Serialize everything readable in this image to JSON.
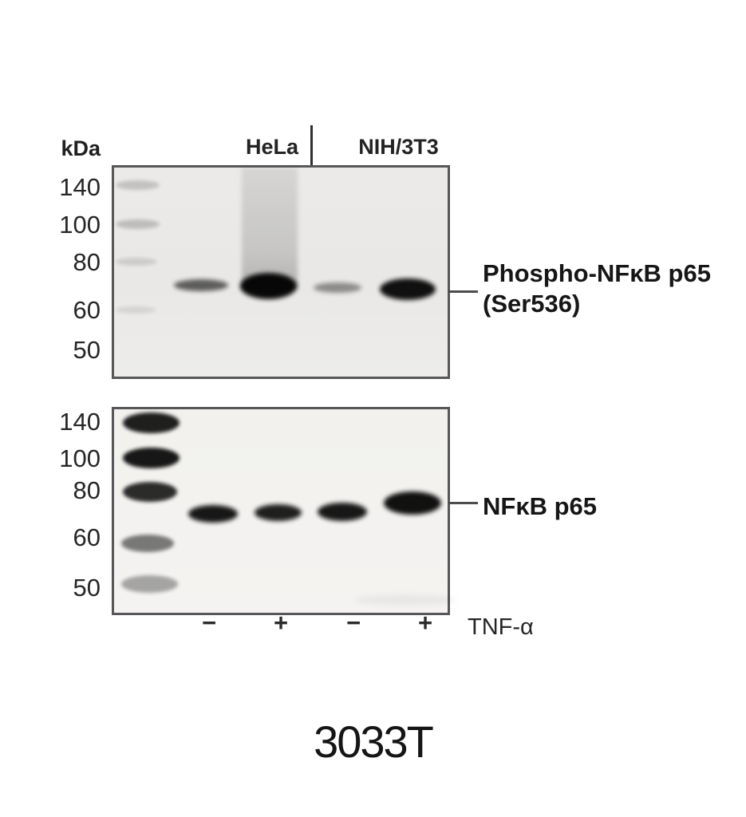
{
  "figure": {
    "unit_label": "kDa",
    "cell_lines": [
      "HeLa",
      "NIH/3T3"
    ],
    "mw_markers_top": [
      "140",
      "100",
      "80",
      "60",
      "50"
    ],
    "mw_markers_bottom": [
      "140",
      "100",
      "80",
      "60",
      "50"
    ],
    "annotations": {
      "top_line1": "Phospho-NFκB p65",
      "top_line2": "(Ser536)",
      "bottom": "NFκB p65"
    },
    "treatment": {
      "label": "TNF-α",
      "lanes": [
        "−",
        "+",
        "−",
        "+"
      ]
    },
    "product_code": "3033T",
    "colors": {
      "background": "#ffffff",
      "panel_border": "#57575a",
      "panel1_background": "#eae9e7",
      "panel2_background": "#f3f2f0",
      "band": "#000000",
      "text": "#1c1c1c"
    },
    "blot_data": {
      "type": "western_blot",
      "panels": [
        {
          "target": "Phospho-NFκB p65 (Ser536)",
          "band_position_kda": "~65",
          "marker_lane": "faint ladder at 140/100/80/60",
          "lanes": [
            {
              "cell_line": "HeLa",
              "tnf_alpha": "−",
              "band": "weak"
            },
            {
              "cell_line": "HeLa",
              "tnf_alpha": "+",
              "band": "strong with vertical smear above"
            },
            {
              "cell_line": "NIH/3T3",
              "tnf_alpha": "−",
              "band": "weak"
            },
            {
              "cell_line": "NIH/3T3",
              "tnf_alpha": "+",
              "band": "strong"
            }
          ]
        },
        {
          "target": "NFκB p65",
          "band_position_kda": "~65",
          "marker_lane": "dark ladder at 140/100/80, medium at 60/50",
          "lanes": [
            {
              "cell_line": "HeLa",
              "tnf_alpha": "−",
              "band": "strong"
            },
            {
              "cell_line": "HeLa",
              "tnf_alpha": "+",
              "band": "strong"
            },
            {
              "cell_line": "NIH/3T3",
              "tnf_alpha": "−",
              "band": "strong"
            },
            {
              "cell_line": "NIH/3T3",
              "tnf_alpha": "+",
              "band": "strong, slightly up-shifted"
            }
          ]
        }
      ]
    }
  }
}
